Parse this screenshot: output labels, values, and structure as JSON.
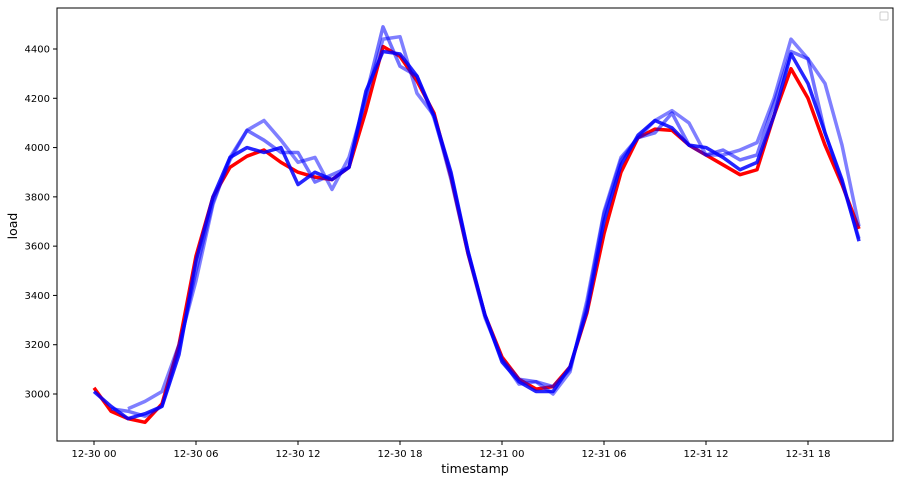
{
  "chart_data": {
    "type": "line",
    "title": "",
    "xlabel": "timestamp",
    "ylabel": "load",
    "x_start": "12-30 00",
    "x_step_hours": 1,
    "xticks": [
      "12-30 00",
      "12-30 06",
      "12-30 12",
      "12-30 18",
      "12-31 00",
      "12-31 06",
      "12-31 12",
      "12-31 18"
    ],
    "yticks": [
      3000,
      3200,
      3400,
      3600,
      3800,
      4000,
      4200,
      4400
    ],
    "ylim": [
      2820,
      4560
    ],
    "grid": false,
    "legend": {
      "placement": "top-right",
      "entries": []
    },
    "series": [
      {
        "color": "#ff0000",
        "opacity": 1,
        "values": [
          3025,
          2930,
          2900,
          2885,
          2960,
          3200,
          3560,
          3800,
          3920,
          3965,
          3990,
          3940,
          3900,
          3880,
          3870,
          3920,
          4150,
          4410,
          4370,
          4270,
          4140,
          3880,
          3570,
          3320,
          3150,
          3060,
          3020,
          3030,
          3110,
          3330,
          3650,
          3900,
          4040,
          4075,
          4070,
          4010,
          3970,
          3930,
          3890,
          3910,
          4130,
          4320,
          4200,
          4010,
          3850,
          3670
        ]
      },
      {
        "color": "#0000ff",
        "opacity": 0.5,
        "values": [
          null,
          null,
          2940,
          2970,
          3010,
          3200,
          3460,
          3770,
          3960,
          4070,
          4110,
          4030,
          3940,
          3960,
          3830,
          3960,
          4200,
          4440,
          4450,
          4220,
          4130,
          3870,
          3570,
          3310,
          3140,
          3040,
          3050,
          3000,
          3090,
          3380,
          3740,
          3960,
          4040,
          4110,
          4150,
          4100,
          3970,
          3970,
          3990,
          4020,
          4200,
          4440,
          4360,
          4260,
          4010,
          3680
        ]
      },
      {
        "color": "#0000ff",
        "opacity": 0.55,
        "values": [
          null,
          2940,
          2930,
          2910,
          2950,
          3180,
          3500,
          3780,
          3950,
          4070,
          4030,
          3980,
          3980,
          3860,
          3890,
          3920,
          4210,
          4490,
          4330,
          4290,
          4120,
          3890,
          3580,
          3320,
          3140,
          3060,
          3050,
          3030,
          3100,
          3360,
          3730,
          3950,
          4040,
          4060,
          4140,
          4010,
          3970,
          3990,
          3950,
          3970,
          4180,
          4390,
          4360,
          4060,
          3860,
          3630
        ]
      },
      {
        "color": "#0000ff",
        "opacity": 0.85,
        "values": [
          3010,
          2950,
          2900,
          2920,
          2950,
          3160,
          3540,
          3800,
          3960,
          4000,
          3980,
          4000,
          3850,
          3900,
          3870,
          3920,
          4230,
          4390,
          4380,
          4290,
          4130,
          3900,
          3580,
          3320,
          3130,
          3050,
          3010,
          3010,
          3110,
          3340,
          3700,
          3930,
          4050,
          4110,
          4080,
          4010,
          4000,
          3960,
          3910,
          3940,
          4130,
          4380,
          4260,
          4060,
          3870,
          3620
        ]
      }
    ]
  }
}
